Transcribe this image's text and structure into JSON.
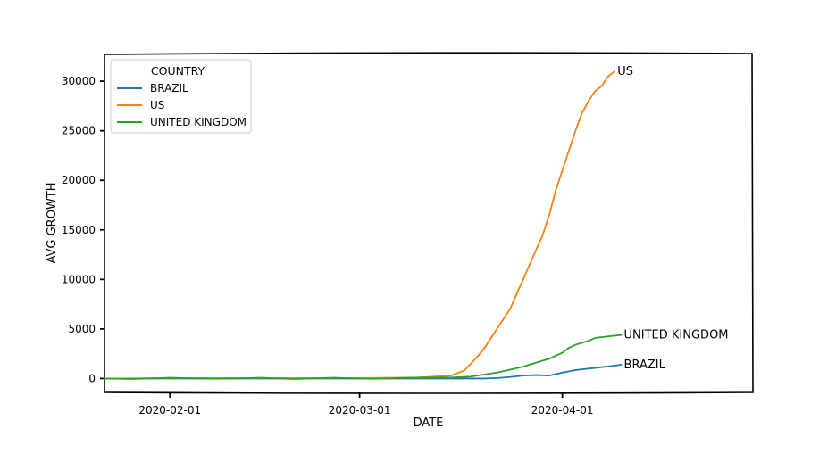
{
  "chart_data": {
    "type": "line",
    "title": "",
    "xlabel": "DATE",
    "ylabel": "AVG GROWTH",
    "x_axis": {
      "type": "date",
      "range": [
        "2020-01-22",
        "2020-04-30"
      ],
      "ticks": [
        "2020-02-01",
        "2020-03-01",
        "2020-04-01"
      ]
    },
    "y_axis": {
      "range": [
        -1400,
        32800
      ],
      "ticks": [
        0,
        5000,
        10000,
        15000,
        20000,
        25000,
        30000
      ]
    },
    "grid": false,
    "legend": {
      "title": "COUNTRY",
      "placement": "top-left"
    },
    "series": [
      {
        "name": "BRAZIL",
        "color": "#1f77b4",
        "end_label": "BRAZIL",
        "points": [
          [
            "2020-01-22",
            0
          ],
          [
            "2020-02-01",
            0
          ],
          [
            "2020-02-15",
            0
          ],
          [
            "2020-03-01",
            0
          ],
          [
            "2020-03-15",
            0
          ],
          [
            "2020-03-20",
            0
          ],
          [
            "2020-03-22",
            50
          ],
          [
            "2020-03-24",
            150
          ],
          [
            "2020-03-26",
            300
          ],
          [
            "2020-03-28",
            350
          ],
          [
            "2020-03-30",
            300
          ],
          [
            "2020-04-01",
            600
          ],
          [
            "2020-04-03",
            850
          ],
          [
            "2020-04-05",
            1000
          ],
          [
            "2020-04-07",
            1150
          ],
          [
            "2020-04-09",
            1300
          ],
          [
            "2020-04-10",
            1400
          ]
        ]
      },
      {
        "name": "US",
        "color": "#ff7f0e",
        "end_label": "US",
        "points": [
          [
            "2020-01-22",
            0
          ],
          [
            "2020-02-01",
            50
          ],
          [
            "2020-02-15",
            50
          ],
          [
            "2020-03-01",
            50
          ],
          [
            "2020-03-10",
            100
          ],
          [
            "2020-03-15",
            300
          ],
          [
            "2020-03-17",
            800
          ],
          [
            "2020-03-18",
            1500
          ],
          [
            "2020-03-19",
            2200
          ],
          [
            "2020-03-20",
            3000
          ],
          [
            "2020-03-21",
            4000
          ],
          [
            "2020-03-22",
            5000
          ],
          [
            "2020-03-23",
            6000
          ],
          [
            "2020-03-24",
            7000
          ],
          [
            "2020-03-25",
            8500
          ],
          [
            "2020-03-26",
            10000
          ],
          [
            "2020-03-27",
            11500
          ],
          [
            "2020-03-28",
            13000
          ],
          [
            "2020-03-29",
            14500
          ],
          [
            "2020-03-30",
            16500
          ],
          [
            "2020-03-31",
            19000
          ],
          [
            "2020-04-01",
            21000
          ],
          [
            "2020-04-02",
            23000
          ],
          [
            "2020-04-03",
            25000
          ],
          [
            "2020-04-04",
            26800
          ],
          [
            "2020-04-05",
            28000
          ],
          [
            "2020-04-06",
            29000
          ],
          [
            "2020-04-07",
            29500
          ],
          [
            "2020-04-08",
            30500
          ],
          [
            "2020-04-09",
            31000
          ]
        ]
      },
      {
        "name": "UNITED KINGDOM",
        "color": "#2ca02c",
        "end_label": "UNITED KINGDOM",
        "points": [
          [
            "2020-01-22",
            0
          ],
          [
            "2020-01-26",
            -50
          ],
          [
            "2020-02-01",
            80
          ],
          [
            "2020-02-08",
            -30
          ],
          [
            "2020-02-15",
            80
          ],
          [
            "2020-02-20",
            -50
          ],
          [
            "2020-02-26",
            80
          ],
          [
            "2020-03-03",
            -30
          ],
          [
            "2020-03-10",
            100
          ],
          [
            "2020-03-15",
            100
          ],
          [
            "2020-03-18",
            200
          ],
          [
            "2020-03-20",
            400
          ],
          [
            "2020-03-22",
            600
          ],
          [
            "2020-03-24",
            900
          ],
          [
            "2020-03-26",
            1200
          ],
          [
            "2020-03-28",
            1600
          ],
          [
            "2020-03-30",
            2000
          ],
          [
            "2020-04-01",
            2600
          ],
          [
            "2020-04-02",
            3100
          ],
          [
            "2020-04-03",
            3400
          ],
          [
            "2020-04-05",
            3800
          ],
          [
            "2020-04-06",
            4100
          ],
          [
            "2020-04-08",
            4250
          ],
          [
            "2020-04-10",
            4400
          ]
        ]
      }
    ]
  }
}
